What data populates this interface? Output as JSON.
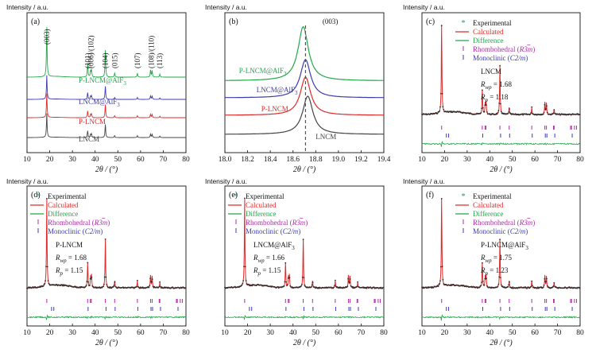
{
  "figure": {
    "ylabel_text": "Intensity / a.u.",
    "xlabel_text": "2θ / (°)"
  },
  "chart_data": [
    {
      "id": "a",
      "type": "line",
      "panel_label": "(a)",
      "xlabel": "2θ / (°)",
      "ylabel": "Intensity / a.u.",
      "xlim": [
        10,
        80
      ],
      "xticks": [
        10,
        20,
        30,
        40,
        50,
        60,
        70,
        80
      ],
      "peaks": [
        18.7,
        36.7,
        38.0,
        38.4,
        44.5,
        48.6,
        58.6,
        64.4,
        65.1,
        68.5
      ],
      "peak_heights": [
        1.0,
        0.28,
        0.12,
        0.14,
        0.55,
        0.08,
        0.08,
        0.14,
        0.13,
        0.06
      ],
      "peak_labels": [
        "(003)",
        "(101)",
        "(006)/(102)",
        "(104)",
        "(015)",
        "(107)",
        "(108)/(110)",
        "(113)"
      ],
      "peak_label_x": [
        18.7,
        36.7,
        38.2,
        44.5,
        48.6,
        58.6,
        64.8,
        68.5
      ],
      "series": [
        {
          "name": "P-LNCM@AlF3",
          "label_text": "P-LNCM@AlF",
          "label_sub": "3",
          "color": "#22a84a"
        },
        {
          "name": "LNCM@AlF3",
          "label_text": "LNCM@AlF",
          "label_sub": "3",
          "color": "#3d3bb0"
        },
        {
          "name": "P-LNCM",
          "label_text": "P-LNCM",
          "label_sub": "",
          "color": "#e02a2a"
        },
        {
          "name": "LNCM",
          "label_text": "LNCM",
          "label_sub": "",
          "color": "#444444"
        }
      ]
    },
    {
      "id": "b",
      "type": "line",
      "panel_label": "(b)",
      "annotation": "(003)",
      "xlabel": "2θ / (°)",
      "ylabel": "Intensity / a.u.",
      "xlim": [
        18.0,
        19.4
      ],
      "xticks": [
        18.0,
        18.2,
        18.4,
        18.6,
        18.8,
        19.0,
        19.2,
        19.4
      ],
      "series": [
        {
          "name": "P-LNCM@AlF3",
          "label_text": "P-LNCM@AlF",
          "label_sub": "3",
          "color": "#22a84a",
          "peak_center": 18.69
        },
        {
          "name": "LNCM@AlF3",
          "label_text": "LNCM@AlF",
          "label_sub": "3",
          "color": "#3d3bb0",
          "peak_center": 18.71
        },
        {
          "name": "P-LNCM",
          "label_text": "P-LNCM",
          "label_sub": "",
          "color": "#e02a2a",
          "peak_center": 18.71
        },
        {
          "name": "LNCM",
          "label_text": "LNCM",
          "label_sub": "",
          "color": "#444444",
          "peak_center": 18.73
        }
      ],
      "reference_line_x": 18.71
    },
    {
      "id": "c",
      "type": "scatter",
      "panel_label": "(c)",
      "sample": "LNCM",
      "rwp_label": "R",
      "rwp_sub": "wp",
      "rwp_value": "= 1.68",
      "rp_label": "R",
      "rp_sub": "p",
      "rp_value": "= 1.18",
      "xlim": [
        10,
        80
      ],
      "xticks": [
        10,
        20,
        30,
        40,
        50,
        60,
        70,
        80
      ]
    },
    {
      "id": "d",
      "type": "scatter",
      "panel_label": "(d)",
      "sample": "P-LNCM",
      "rwp_label": "R",
      "rwp_sub": "wp",
      "rwp_value": "= 1.68",
      "rp_label": "R",
      "rp_sub": "p",
      "rp_value": "= 1.15",
      "xlim": [
        10,
        80
      ],
      "xticks": [
        10,
        20,
        30,
        40,
        50,
        60,
        70,
        80
      ]
    },
    {
      "id": "e",
      "type": "scatter",
      "panel_label": "(e)",
      "sample": "LNCM@AlF",
      "sample_sub": "3",
      "rwp_label": "R",
      "rwp_sub": "wp",
      "rwp_value": "= 1.66",
      "rp_label": "R",
      "rp_sub": "p",
      "rp_value": "= 1.15",
      "xlim": [
        10,
        80
      ],
      "xticks": [
        10,
        20,
        30,
        40,
        50,
        60,
        70,
        80
      ]
    },
    {
      "id": "f",
      "type": "scatter",
      "panel_label": "(f)",
      "sample": "P-LNCM@AlF",
      "sample_sub": "3",
      "rwp_label": "R",
      "rwp_sub": "wp",
      "rwp_value": "= 1.75",
      "rp_label": "R",
      "rp_sub": "p",
      "rp_value": "= 1.23",
      "xlim": [
        10,
        80
      ],
      "xticks": [
        10,
        20,
        30,
        40,
        50,
        60,
        70,
        80
      ]
    }
  ],
  "refinement_legend": [
    {
      "name": "Experimental",
      "color": "#2a8f86",
      "symbol": "star"
    },
    {
      "name": "Calculated",
      "color": "#e02a2a",
      "symbol": "line"
    },
    {
      "name": "Difference",
      "color": "#22a84a",
      "symbol": "line"
    },
    {
      "name": "Rhombohedral (R3m)",
      "label_text": "Rhombohedral (",
      "label_italic": "R3m",
      "label_bar": "3",
      "label_close": ")",
      "color": "#b02aa8",
      "symbol": "tick"
    },
    {
      "name": "Monoclinic (C2/m)",
      "label_text": "Monoclinic (",
      "label_italic": "C2/m",
      "label_close": ")",
      "color": "#3d3bb0",
      "symbol": "tick"
    }
  ],
  "rhombohedral_positions": [
    18.7,
    36.7,
    37.9,
    38.3,
    44.5,
    48.6,
    58.6,
    64.4,
    65.1,
    68.2,
    68.5,
    75.8,
    76.2,
    77.5,
    78.4
  ],
  "monoclinic_positions": [
    20.8,
    21.8,
    36.9,
    44.8,
    48.8,
    58.8,
    64.6,
    65.3,
    68.8,
    76.5
  ]
}
